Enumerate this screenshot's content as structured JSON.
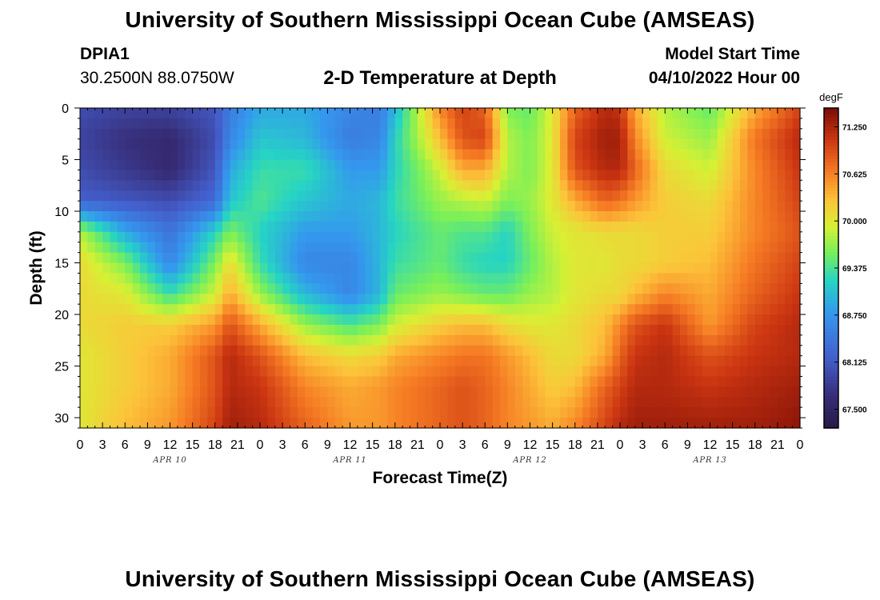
{
  "header": {
    "title": "University of Southern Mississippi Ocean Cube (AMSEAS)",
    "station_id": "DPIA1",
    "station_coords": "30.2500N  88.0750W",
    "subtitle": "2-D Temperature at Depth",
    "model_start_label": "Model Start Time",
    "model_start_value": "04/10/2022 Hour 00",
    "repeated_title": "University of Southern Mississippi Ocean Cube (AMSEAS)"
  },
  "chart_data": {
    "type": "heatmap",
    "title": "2-D Temperature at Depth",
    "xlabel": "Forecast Time(Z)",
    "ylabel": "Depth (ft)",
    "x_range_hours": [
      0,
      96
    ],
    "ylim": [
      0,
      31
    ],
    "x_tick_labels": [
      "0",
      "3",
      "6",
      "9",
      "12",
      "15",
      "18",
      "21",
      "0",
      "3",
      "6",
      "9",
      "12",
      "15",
      "18",
      "21",
      "0",
      "3",
      "6",
      "9",
      "12",
      "15",
      "18",
      "21",
      "0",
      "3",
      "6",
      "9",
      "12",
      "15",
      "18",
      "21",
      "0"
    ],
    "y_ticks": [
      0,
      5,
      10,
      15,
      20,
      25,
      30
    ],
    "y_tick_labels": [
      "0",
      "5",
      "10",
      "15",
      "20",
      "25",
      "30"
    ],
    "day_labels": [
      {
        "hour": 12,
        "label": "APR 10"
      },
      {
        "hour": 36,
        "label": "APR 11"
      },
      {
        "hour": 60,
        "label": "APR 12"
      },
      {
        "hour": 84,
        "label": "APR 13"
      }
    ],
    "colorbar": {
      "unit": "degF",
      "min": 67.25,
      "max": 71.5,
      "tick_values": [
        67.5,
        68.125,
        68.75,
        69.375,
        70.0,
        70.625,
        71.25
      ],
      "tick_labels": [
        "67.500",
        "68.125",
        "68.750",
        "69.375",
        "70.000",
        "70.625",
        "71.250"
      ]
    },
    "depth_levels_ft": [
      0,
      3,
      6,
      9,
      12,
      15,
      18,
      21,
      24,
      27,
      31
    ],
    "time_hours": [
      0,
      6,
      12,
      18,
      20,
      24,
      30,
      36,
      40,
      42,
      48,
      51,
      54,
      57,
      60,
      63,
      66,
      70,
      72,
      74,
      78,
      84,
      90,
      96
    ],
    "temperature_degF": [
      [
        68.0,
        67.9,
        67.9,
        68.1,
        68.5,
        68.9,
        68.9,
        68.6,
        68.5,
        69.0,
        70.6,
        71.0,
        70.8,
        69.6,
        69.5,
        70.0,
        70.8,
        71.2,
        71.1,
        70.4,
        69.8,
        69.5,
        70.4,
        71.0
      ],
      [
        67.9,
        67.7,
        67.6,
        68.0,
        68.6,
        69.1,
        69.0,
        68.5,
        68.6,
        69.2,
        70.3,
        70.9,
        71.0,
        69.8,
        69.6,
        70.0,
        71.0,
        71.3,
        71.3,
        70.6,
        69.9,
        69.7,
        70.7,
        71.2
      ],
      [
        68.0,
        67.8,
        67.6,
        68.1,
        68.9,
        69.3,
        69.3,
        68.8,
        68.8,
        69.2,
        69.9,
        70.4,
        70.4,
        69.8,
        69.6,
        70.0,
        70.9,
        71.2,
        71.2,
        70.8,
        70.1,
        69.9,
        70.6,
        71.1
      ],
      [
        68.2,
        68.1,
        68.0,
        68.3,
        69.1,
        69.4,
        69.1,
        68.9,
        69.0,
        69.3,
        69.7,
        69.8,
        69.9,
        69.6,
        69.7,
        70.0,
        70.4,
        70.8,
        70.7,
        70.5,
        70.2,
        70.1,
        70.6,
        71.0
      ],
      [
        69.8,
        68.9,
        68.4,
        69.2,
        69.6,
        69.2,
        68.8,
        68.8,
        69.0,
        69.2,
        69.5,
        69.4,
        69.4,
        69.2,
        69.6,
        69.9,
        70.0,
        70.1,
        70.1,
        70.1,
        70.2,
        70.2,
        70.6,
        70.9
      ],
      [
        70.1,
        69.6,
        68.6,
        69.6,
        70.1,
        69.3,
        68.6,
        68.6,
        69.0,
        69.3,
        69.5,
        69.3,
        69.2,
        69.2,
        69.5,
        69.8,
        70.0,
        70.0,
        70.1,
        70.1,
        70.2,
        70.3,
        70.7,
        71.0
      ],
      [
        70.1,
        70.0,
        69.3,
        69.9,
        70.4,
        69.7,
        69.0,
        68.6,
        69.0,
        69.5,
        69.7,
        69.6,
        69.5,
        69.5,
        69.7,
        69.8,
        70.0,
        70.1,
        70.1,
        70.3,
        70.6,
        70.4,
        70.8,
        71.1
      ],
      [
        70.1,
        70.2,
        70.2,
        70.5,
        70.9,
        70.4,
        69.7,
        69.4,
        69.6,
        69.9,
        70.2,
        70.3,
        70.3,
        70.1,
        70.0,
        70.0,
        70.1,
        70.3,
        70.6,
        70.9,
        71.1,
        70.5,
        71.0,
        71.2
      ],
      [
        70.0,
        70.2,
        70.4,
        70.9,
        71.2,
        70.9,
        70.3,
        70.1,
        70.2,
        70.4,
        70.6,
        70.7,
        70.7,
        70.5,
        70.3,
        70.1,
        70.1,
        70.4,
        70.8,
        71.1,
        71.2,
        70.9,
        71.1,
        71.2
      ],
      [
        70.0,
        70.2,
        70.4,
        70.9,
        71.2,
        71.1,
        70.6,
        70.4,
        70.5,
        70.6,
        70.8,
        70.9,
        70.8,
        70.6,
        70.4,
        70.2,
        70.3,
        70.8,
        71.0,
        71.2,
        71.2,
        71.1,
        71.2,
        71.3
      ],
      [
        70.0,
        70.3,
        70.5,
        71.0,
        71.3,
        71.2,
        70.8,
        70.5,
        70.5,
        70.6,
        70.8,
        70.9,
        70.8,
        70.6,
        70.5,
        70.4,
        70.6,
        71.0,
        71.2,
        71.3,
        71.3,
        71.3,
        71.3,
        71.4
      ]
    ]
  }
}
